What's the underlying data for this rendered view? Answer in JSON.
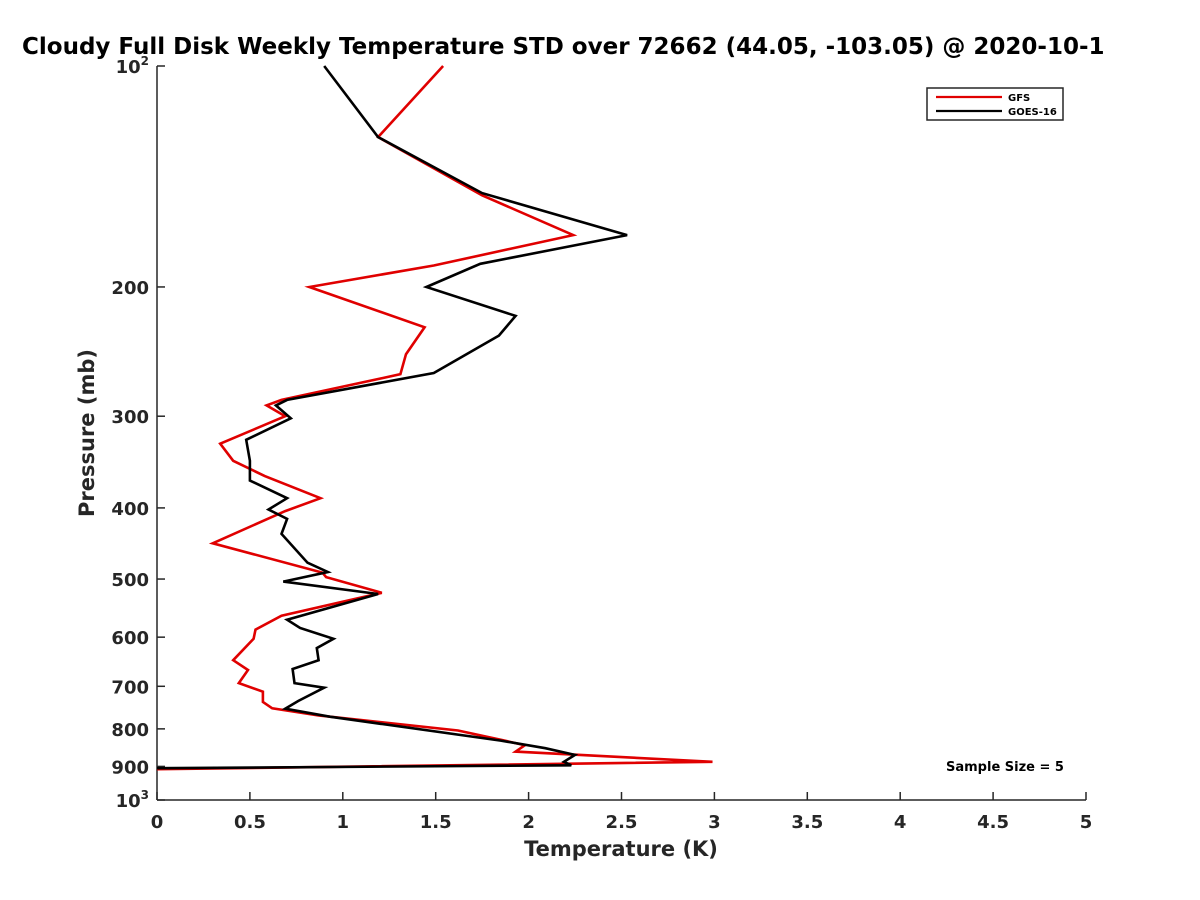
{
  "chart_data": {
    "type": "line",
    "title": "Cloudy Full Disk Weekly Temperature STD over 72662 (44.05, -103.05) @ 2020-10-1",
    "xlabel": "Temperature (K)",
    "ylabel": "Pressure (mb)",
    "xlim": [
      0,
      5
    ],
    "ylim": [
      100,
      1000
    ],
    "y_scale": "log",
    "y_reversed": true,
    "x_ticks": [
      "0",
      "0.5",
      "1",
      "1.5",
      "2",
      "2.5",
      "3",
      "3.5",
      "4",
      "4.5",
      "5"
    ],
    "y_ticks": [
      {
        "value": 100,
        "base": "10",
        "exp": "2",
        "label": ""
      },
      {
        "value": 200,
        "label": "200"
      },
      {
        "value": 300,
        "label": "300"
      },
      {
        "value": 400,
        "label": "400"
      },
      {
        "value": 500,
        "label": "500"
      },
      {
        "value": 600,
        "label": "600"
      },
      {
        "value": 700,
        "label": "700"
      },
      {
        "value": 800,
        "label": "800"
      },
      {
        "value": 900,
        "label": "900"
      },
      {
        "value": 1000,
        "base": "10",
        "exp": "3",
        "label": ""
      }
    ],
    "grid": false,
    "legend_position": "top-right",
    "annotation": "Sample Size = 5",
    "series": [
      {
        "name": "GFS",
        "color": "#e00000",
        "points": [
          [
            1.54,
            100
          ],
          [
            1.19,
            125
          ],
          [
            1.75,
            150
          ],
          [
            2.24,
            170
          ],
          [
            1.49,
            187
          ],
          [
            0.82,
            200
          ],
          [
            1.44,
            227
          ],
          [
            1.34,
            247
          ],
          [
            1.31,
            263
          ],
          [
            0.67,
            285
          ],
          [
            0.59,
            290
          ],
          [
            0.69,
            300
          ],
          [
            0.34,
            327
          ],
          [
            0.41,
            345
          ],
          [
            0.58,
            362
          ],
          [
            0.88,
            388
          ],
          [
            0.69,
            404
          ],
          [
            0.3,
            447
          ],
          [
            0.89,
            490
          ],
          [
            0.91,
            497
          ],
          [
            1.21,
            522
          ],
          [
            0.67,
            561
          ],
          [
            0.53,
            586
          ],
          [
            0.52,
            603
          ],
          [
            0.41,
            645
          ],
          [
            0.49,
            665
          ],
          [
            0.44,
            693
          ],
          [
            0.57,
            712
          ],
          [
            0.57,
            735
          ],
          [
            0.62,
            750
          ],
          [
            0.87,
            767
          ],
          [
            1.62,
            804
          ],
          [
            1.86,
            829
          ],
          [
            1.98,
            842
          ],
          [
            1.93,
            859
          ],
          [
            2.99,
            887
          ],
          [
            0.0,
            908
          ]
        ]
      },
      {
        "name": "GOES-16",
        "color": "#000000",
        "points": [
          [
            0.9,
            100
          ],
          [
            1.19,
            125
          ],
          [
            1.75,
            149
          ],
          [
            2.53,
            170
          ],
          [
            1.74,
            186
          ],
          [
            1.45,
            200
          ],
          [
            1.93,
            219
          ],
          [
            1.84,
            233
          ],
          [
            1.49,
            262
          ],
          [
            0.7,
            285
          ],
          [
            0.64,
            290
          ],
          [
            0.72,
            302
          ],
          [
            0.48,
            323
          ],
          [
            0.5,
            345
          ],
          [
            0.5,
            367
          ],
          [
            0.7,
            388
          ],
          [
            0.6,
            402
          ],
          [
            0.7,
            414
          ],
          [
            0.67,
            434
          ],
          [
            0.81,
            475
          ],
          [
            0.92,
            489
          ],
          [
            0.68,
            504
          ],
          [
            1.19,
            524
          ],
          [
            0.7,
            568
          ],
          [
            0.77,
            583
          ],
          [
            0.95,
            603
          ],
          [
            0.86,
            621
          ],
          [
            0.87,
            645
          ],
          [
            0.73,
            663
          ],
          [
            0.74,
            693
          ],
          [
            0.9,
            703
          ],
          [
            0.76,
            733
          ],
          [
            0.69,
            751
          ],
          [
            0.93,
            770
          ],
          [
            1.85,
            830
          ],
          [
            2.09,
            850
          ],
          [
            2.25,
            868
          ],
          [
            2.19,
            887
          ],
          [
            2.23,
            897
          ],
          [
            0.0,
            905
          ]
        ]
      }
    ]
  }
}
